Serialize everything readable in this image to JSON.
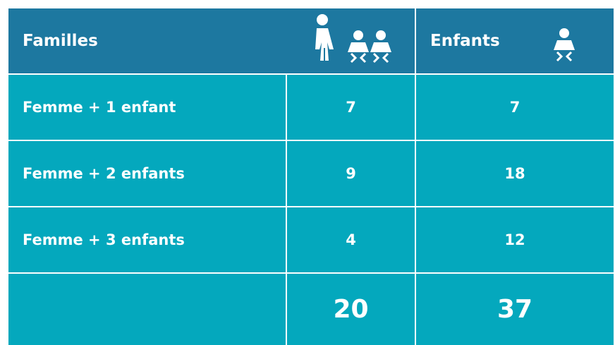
{
  "table": {
    "header": [
      "Familles",
      "Enfants"
    ],
    "rows": [
      [
        "Femme + 1 enfant",
        7,
        7
      ],
      [
        "Femme + 2 enfants",
        9,
        18
      ],
      [
        "Femme + 3 enfants",
        4,
        12
      ]
    ],
    "totals": [
      20,
      37
    ]
  }
}
